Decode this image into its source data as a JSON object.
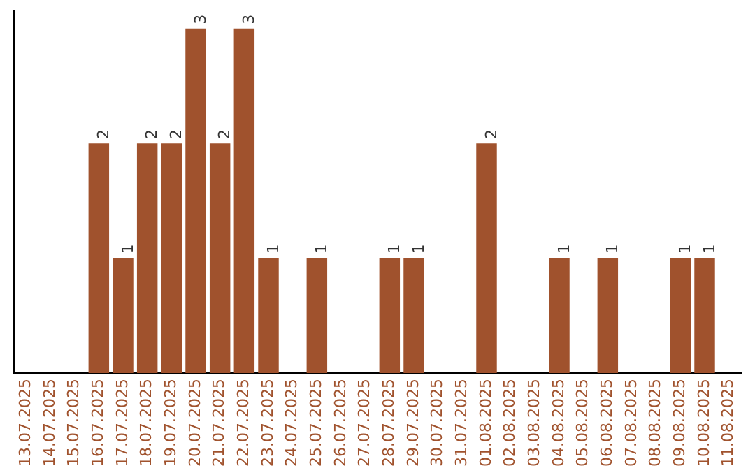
{
  "chart_data": {
    "type": "bar",
    "categories": [
      "13.07.2025",
      "14.07.2025",
      "15.07.2025",
      "16.07.2025",
      "17.07.2025",
      "18.07.2025",
      "19.07.2025",
      "20.07.2025",
      "21.07.2025",
      "22.07.2025",
      "23.07.2025",
      "24.07.2025",
      "25.07.2025",
      "26.07.2025",
      "27.07.2025",
      "28.07.2025",
      "29.07.2025",
      "30.07.2025",
      "31.07.2025",
      "01.08.2025",
      "02.08.2025",
      "03.08.2025",
      "04.08.2025",
      "05.08.2025",
      "06.08.2025",
      "07.08.2025",
      "08.08.2025",
      "09.08.2025",
      "10.08.2025",
      "11.08.2025"
    ],
    "values": [
      0,
      0,
      0,
      2,
      1,
      2,
      2,
      3,
      2,
      3,
      1,
      0,
      1,
      0,
      0,
      1,
      1,
      0,
      0,
      2,
      0,
      0,
      1,
      0,
      1,
      0,
      0,
      1,
      1,
      0
    ],
    "value_labels": [
      null,
      null,
      null,
      "2",
      "1",
      "2",
      "2",
      "3",
      "2",
      "3",
      "1",
      null,
      "1",
      null,
      null,
      "1",
      "1",
      null,
      null,
      "2",
      null,
      null,
      "1",
      null,
      "1",
      null,
      null,
      "1",
      "1",
      null
    ],
    "color": "#a0522d",
    "ylim": [
      0,
      3.15
    ],
    "tick_labels": "x",
    "grid": false,
    "legend": false
  }
}
